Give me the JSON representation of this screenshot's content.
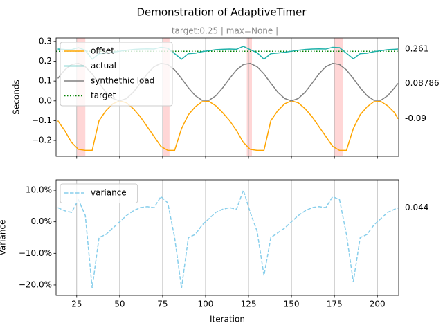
{
  "chart_data": [
    {
      "type": "line",
      "title": "Demonstration of AdaptiveTimer",
      "subtitle": "target:0.25 | max=None |",
      "ylabel": "Seconds",
      "grid": "x",
      "legend": "upper left",
      "show_xtick_labels": false,
      "xlim": [
        13,
        212.4
      ],
      "ylim": [
        -0.28,
        0.317
      ],
      "xticks": [
        25,
        50,
        75,
        100,
        125,
        150,
        175,
        200
      ],
      "yticks": [
        0.3,
        0.2,
        0.1,
        {
          "value": 0,
          "label": "0.0"
        },
        {
          "value": -0.1,
          "label": "−0.1"
        },
        {
          "value": -0.2,
          "label": "−0.2"
        }
      ],
      "x": [
        14,
        18,
        22,
        26,
        30,
        34,
        38,
        42,
        46,
        50,
        54,
        58,
        62,
        66,
        70,
        74,
        78,
        82,
        86,
        90,
        94,
        98,
        102,
        106,
        110,
        114,
        118,
        122,
        126,
        130,
        134,
        138,
        142,
        146,
        150,
        154,
        158,
        162,
        166,
        170,
        174,
        178,
        182,
        186,
        190,
        194,
        198,
        202,
        206,
        210,
        212
      ],
      "span_color": "#ffd6d6",
      "spans": [
        [
          25,
          30
        ],
        [
          75,
          79
        ],
        [
          124,
          127
        ],
        [
          175,
          180
        ]
      ],
      "series": [
        {
          "name": "offset",
          "color": "#ffa500",
          "style": "solid",
          "end_label": "-0.09",
          "values": [
            -0.1,
            -0.15,
            -0.21,
            -0.245,
            -0.25,
            -0.25,
            -0.1,
            -0.05,
            -0.015,
            0,
            -0.01,
            -0.04,
            -0.08,
            -0.13,
            -0.18,
            -0.23,
            -0.25,
            -0.25,
            -0.14,
            -0.07,
            -0.03,
            -0.004,
            -0.003,
            -0.025,
            -0.06,
            -0.1,
            -0.15,
            -0.21,
            -0.245,
            -0.25,
            -0.25,
            -0.1,
            -0.05,
            -0.015,
            0,
            -0.01,
            -0.04,
            -0.08,
            -0.13,
            -0.18,
            -0.23,
            -0.25,
            -0.25,
            -0.14,
            -0.07,
            -0.03,
            -0.004,
            -0.003,
            -0.025,
            -0.06,
            -0.09
          ]
        },
        {
          "name": "actual",
          "color": "#20b2aa",
          "style": "solid",
          "end_label": "0.261",
          "values": [
            0.261,
            0.259,
            0.258,
            0.268,
            0.255,
            0.21,
            0.238,
            0.24,
            0.245,
            0.25,
            0.255,
            0.259,
            0.261,
            0.262,
            0.261,
            0.27,
            0.265,
            0.238,
            0.21,
            0.238,
            0.24,
            0.248,
            0.253,
            0.258,
            0.26,
            0.261,
            0.26,
            0.275,
            0.258,
            0.243,
            0.21,
            0.238,
            0.241,
            0.245,
            0.25,
            0.255,
            0.259,
            0.261,
            0.262,
            0.261,
            0.27,
            0.268,
            0.24,
            0.212,
            0.238,
            0.24,
            0.248,
            0.253,
            0.258,
            0.26,
            0.261
          ]
        },
        {
          "name": "synthethic load",
          "color": "#808080",
          "style": "solid",
          "end_label": "0.08786",
          "values": [
            0.113,
            0.156,
            0.183,
            0.189,
            0.172,
            0.136,
            0.089,
            0.044,
            0.012,
            0,
            0.012,
            0.044,
            0.089,
            0.136,
            0.172,
            0.189,
            0.183,
            0.156,
            0.113,
            0.066,
            0.026,
            0.003,
            0.003,
            0.026,
            0.066,
            0.113,
            0.156,
            0.183,
            0.189,
            0.172,
            0.136,
            0.089,
            0.044,
            0.012,
            0,
            0.012,
            0.044,
            0.089,
            0.136,
            0.172,
            0.189,
            0.183,
            0.156,
            0.113,
            0.066,
            0.026,
            0.003,
            0.003,
            0.026,
            0.066,
            0.08786
          ]
        }
      ],
      "reference_lines": [
        {
          "name": "target",
          "value": 0.25,
          "color": "#008000",
          "style": "dotted"
        }
      ]
    },
    {
      "type": "line",
      "xlabel": "Iteration",
      "ylabel": "Variance",
      "grid": "x",
      "legend": "upper left",
      "show_xtick_labels": true,
      "xlim": [
        13,
        212.4
      ],
      "ylim": [
        -0.233,
        0.133
      ],
      "xticks": [
        25,
        50,
        75,
        100,
        125,
        150,
        175,
        200
      ],
      "yticks": [
        {
          "value": 0.1,
          "label": "10.0%"
        },
        {
          "value": 0,
          "label": "0.0%"
        },
        {
          "value": -0.1,
          "label": "−10.0%"
        },
        {
          "value": -0.2,
          "label": "−20.0%"
        }
      ],
      "x": [
        14,
        18,
        22,
        26,
        30,
        34,
        38,
        42,
        46,
        50,
        54,
        58,
        62,
        66,
        70,
        74,
        78,
        82,
        86,
        90,
        94,
        98,
        102,
        106,
        110,
        114,
        118,
        122,
        126,
        130,
        134,
        138,
        142,
        146,
        150,
        154,
        158,
        162,
        166,
        170,
        174,
        178,
        182,
        186,
        190,
        194,
        198,
        202,
        206,
        210,
        212
      ],
      "series": [
        {
          "name": "variance",
          "color": "#87ceeb",
          "style": "dashed",
          "end_label": "0.044",
          "values": [
            0.045,
            0.035,
            0.03,
            0.07,
            0.02,
            -0.21,
            -0.05,
            -0.04,
            -0.02,
            0,
            0.02,
            0.035,
            0.045,
            0.048,
            0.045,
            0.08,
            0.06,
            -0.05,
            -0.21,
            -0.05,
            -0.04,
            -0.01,
            0.01,
            0.03,
            0.04,
            0.045,
            0.04,
            0.1,
            0.03,
            -0.03,
            -0.17,
            -0.05,
            -0.035,
            -0.02,
            0,
            0.02,
            0.035,
            0.045,
            0.048,
            0.045,
            0.08,
            0.07,
            -0.04,
            -0.19,
            -0.05,
            -0.04,
            -0.01,
            0.01,
            0.03,
            0.04,
            0.044
          ]
        }
      ]
    }
  ]
}
